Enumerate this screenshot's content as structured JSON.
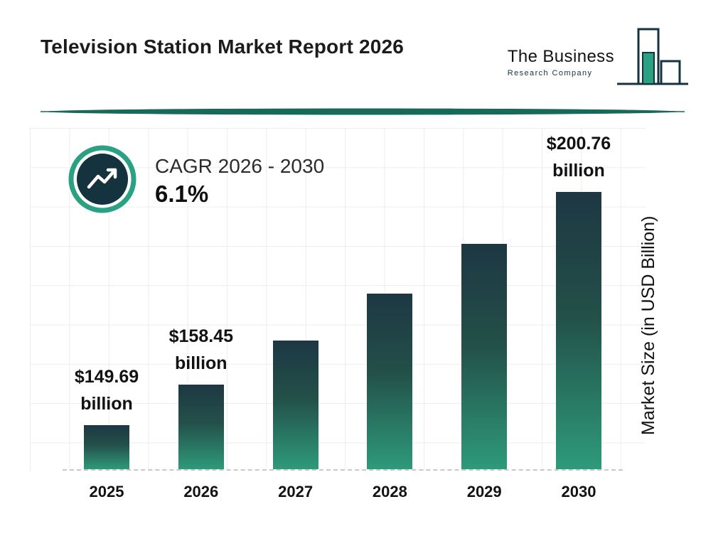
{
  "header": {
    "title": "Television Station Market Report 2026",
    "logo": {
      "line1": "The Business",
      "line2": "Research Company"
    }
  },
  "cagr": {
    "label": "CAGR 2026 - 2030",
    "value": "6.1%"
  },
  "chart_data": {
    "type": "bar",
    "title": "Television Station Market Report 2026",
    "categories": [
      "2025",
      "2026",
      "2027",
      "2028",
      "2029",
      "2030"
    ],
    "values": [
      149.69,
      158.45,
      168.11,
      178.37,
      189.25,
      200.76
    ],
    "bar_labels": [
      {
        "amount": "$149.69",
        "unit": "billion"
      },
      {
        "amount": "$158.45",
        "unit": "billion"
      },
      null,
      null,
      null,
      {
        "amount": "$200.76",
        "unit": "billion"
      }
    ],
    "xlabel": "",
    "ylabel": "Market Size (in USD Billion)",
    "ylim": [
      140,
      215
    ],
    "grid": true,
    "legend": "none",
    "colors": {
      "bar_gradient_top": "#1d3743",
      "bar_gradient_bottom": "#2e9a7a",
      "accent_teal": "#2aa183",
      "badge_navy": "#14333f",
      "divider": "#17695a",
      "grid_line": "#ededed",
      "text": "#121212"
    }
  }
}
